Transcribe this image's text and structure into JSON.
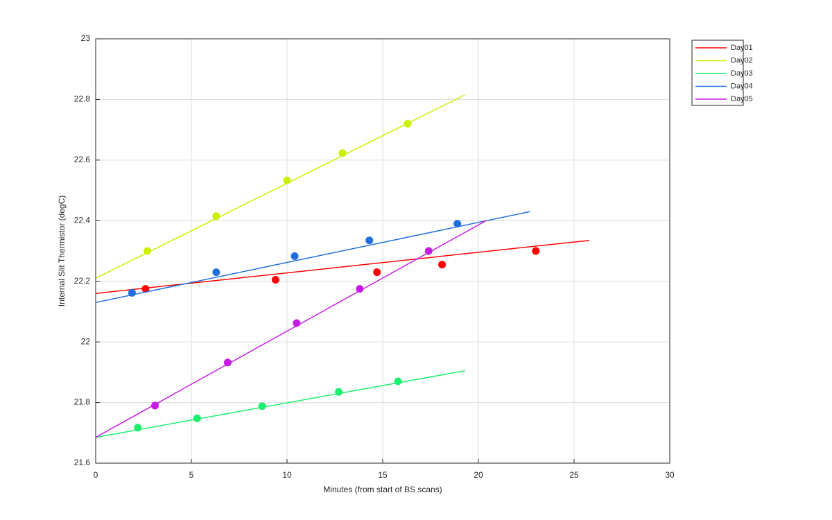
{
  "chart_data": {
    "type": "line",
    "xlabel": "Minutes (from start of BS scans)",
    "ylabel": "Internal Slit Thermistor (degC)",
    "xlim": [
      0,
      30
    ],
    "xticks": [
      0,
      5,
      10,
      15,
      20,
      25,
      30
    ],
    "ylim": [
      21.6,
      23
    ],
    "yticks": [
      21.6,
      21.8,
      22,
      22.2,
      22.4,
      22.6,
      22.8,
      23
    ],
    "grid": true,
    "legend": "outside-top-right",
    "series": [
      {
        "name": "Day01",
        "color": "#ff0000",
        "x": [
          0,
          25.8
        ],
        "values": [
          22.16,
          22.335
        ],
        "markers": {
          "x": [
            2.6,
            9.4,
            14.7,
            18.1,
            23
          ],
          "values": [
            22.175,
            22.205,
            22.23,
            22.255,
            22.3
          ]
        }
      },
      {
        "name": "Day02",
        "color": "#ccf000",
        "x": [
          0,
          19.3
        ],
        "values": [
          22.21,
          22.815
        ],
        "markers": {
          "x": [
            2.7,
            6.3,
            10,
            12.9,
            16.3
          ],
          "values": [
            22.3,
            22.415,
            22.533,
            22.623,
            22.72
          ]
        }
      },
      {
        "name": "Day03",
        "color": "#19f06e",
        "x": [
          0,
          19.3
        ],
        "values": [
          21.685,
          21.905
        ],
        "markers": {
          "x": [
            2.2,
            5.3,
            8.7,
            12.7,
            15.8
          ],
          "values": [
            21.717,
            21.748,
            21.788,
            21.835,
            21.87
          ]
        }
      },
      {
        "name": "Day04",
        "color": "#1f6fe0",
        "x": [
          0,
          22.7
        ],
        "values": [
          22.13,
          22.43
        ],
        "markers": {
          "x": [
            1.9,
            6.3,
            10.4,
            14.3,
            18.9
          ],
          "values": [
            22.162,
            22.23,
            22.283,
            22.335,
            22.39
          ]
        }
      },
      {
        "name": "Day05",
        "color": "#c81ae6",
        "x": [
          0,
          20.4
        ],
        "values": [
          21.685,
          22.4
        ],
        "markers": {
          "x": [
            3.1,
            6.9,
            10.5,
            13.8,
            17.4
          ],
          "values": [
            21.79,
            21.932,
            22.062,
            22.175,
            22.3
          ]
        }
      }
    ]
  }
}
